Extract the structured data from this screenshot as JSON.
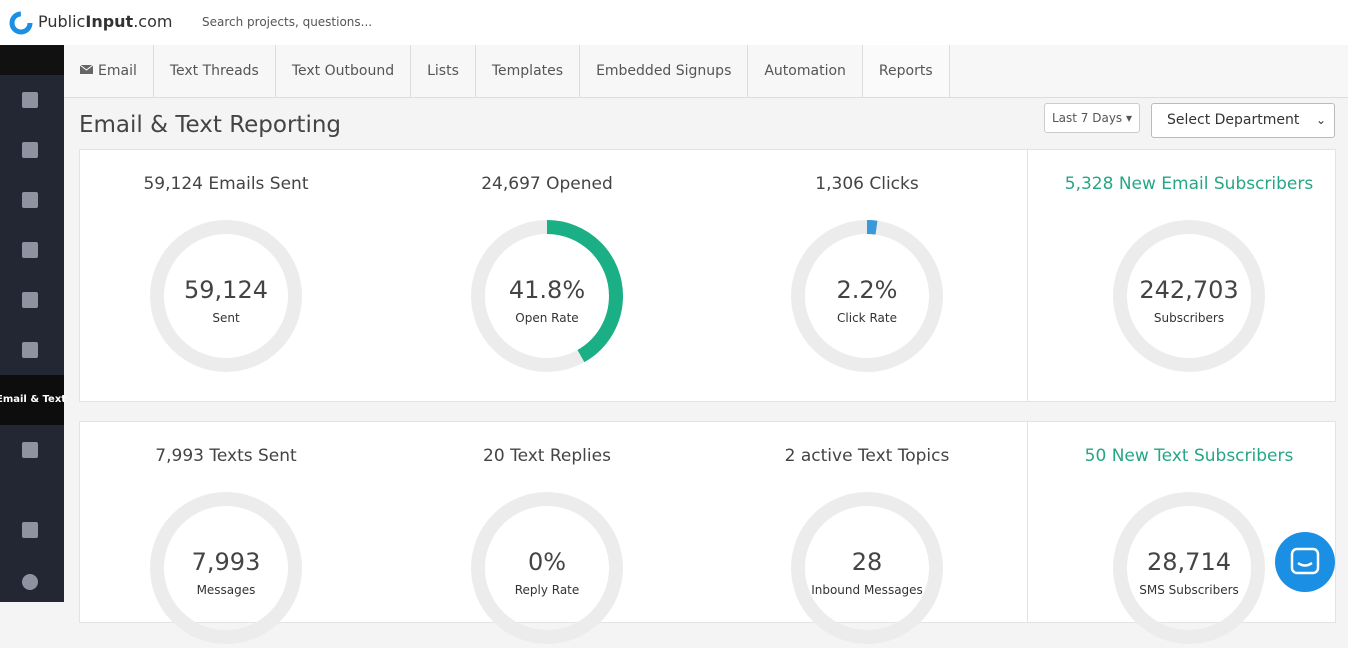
{
  "header": {
    "logo_parts": [
      "Public",
      "Input",
      ".com"
    ],
    "search_placeholder": "Search projects, questions..."
  },
  "sidebar": {
    "active_item": "Email & Text"
  },
  "tabs": [
    "Email",
    "Text Threads",
    "Text Outbound",
    "Lists",
    "Templates",
    "Embedded Signups",
    "Automation",
    "Reports"
  ],
  "page": {
    "title": "Email & Text Reporting",
    "date_filter": "Last 7 Days",
    "department_select": "Select Department"
  },
  "email_stats": [
    {
      "heading": "59,124 Emails Sent",
      "center": "59,124",
      "caption": "Sent"
    },
    {
      "heading": "24,697 Opened",
      "rate": {
        "value": 41.8,
        "label": "41.8%"
      },
      "arc_color": "#1aaf85",
      "caption": "Open Rate"
    },
    {
      "heading": "1,306 Clicks",
      "rate": {
        "value": 2.2,
        "label": "2.2%"
      },
      "arc_color": "#3a9ad9",
      "caption": "Click Rate"
    },
    {
      "heading": "5,328 New Email Subscribers",
      "center": "242,703",
      "caption": "Subscribers"
    }
  ],
  "text_stats": [
    {
      "heading": "7,993 Texts Sent",
      "center": "7,993",
      "caption": "Messages"
    },
    {
      "heading": "20 Text Replies",
      "rate": {
        "value": 0,
        "label": "0%"
      },
      "arc_color": "#1aaf85",
      "caption": "Reply Rate"
    },
    {
      "heading": "2 active Text Topics",
      "center": "28",
      "caption": "Inbound Messages"
    },
    {
      "heading": "50 New Text Subscribers",
      "center": "28,714",
      "caption": "SMS Subscribers"
    }
  ]
}
